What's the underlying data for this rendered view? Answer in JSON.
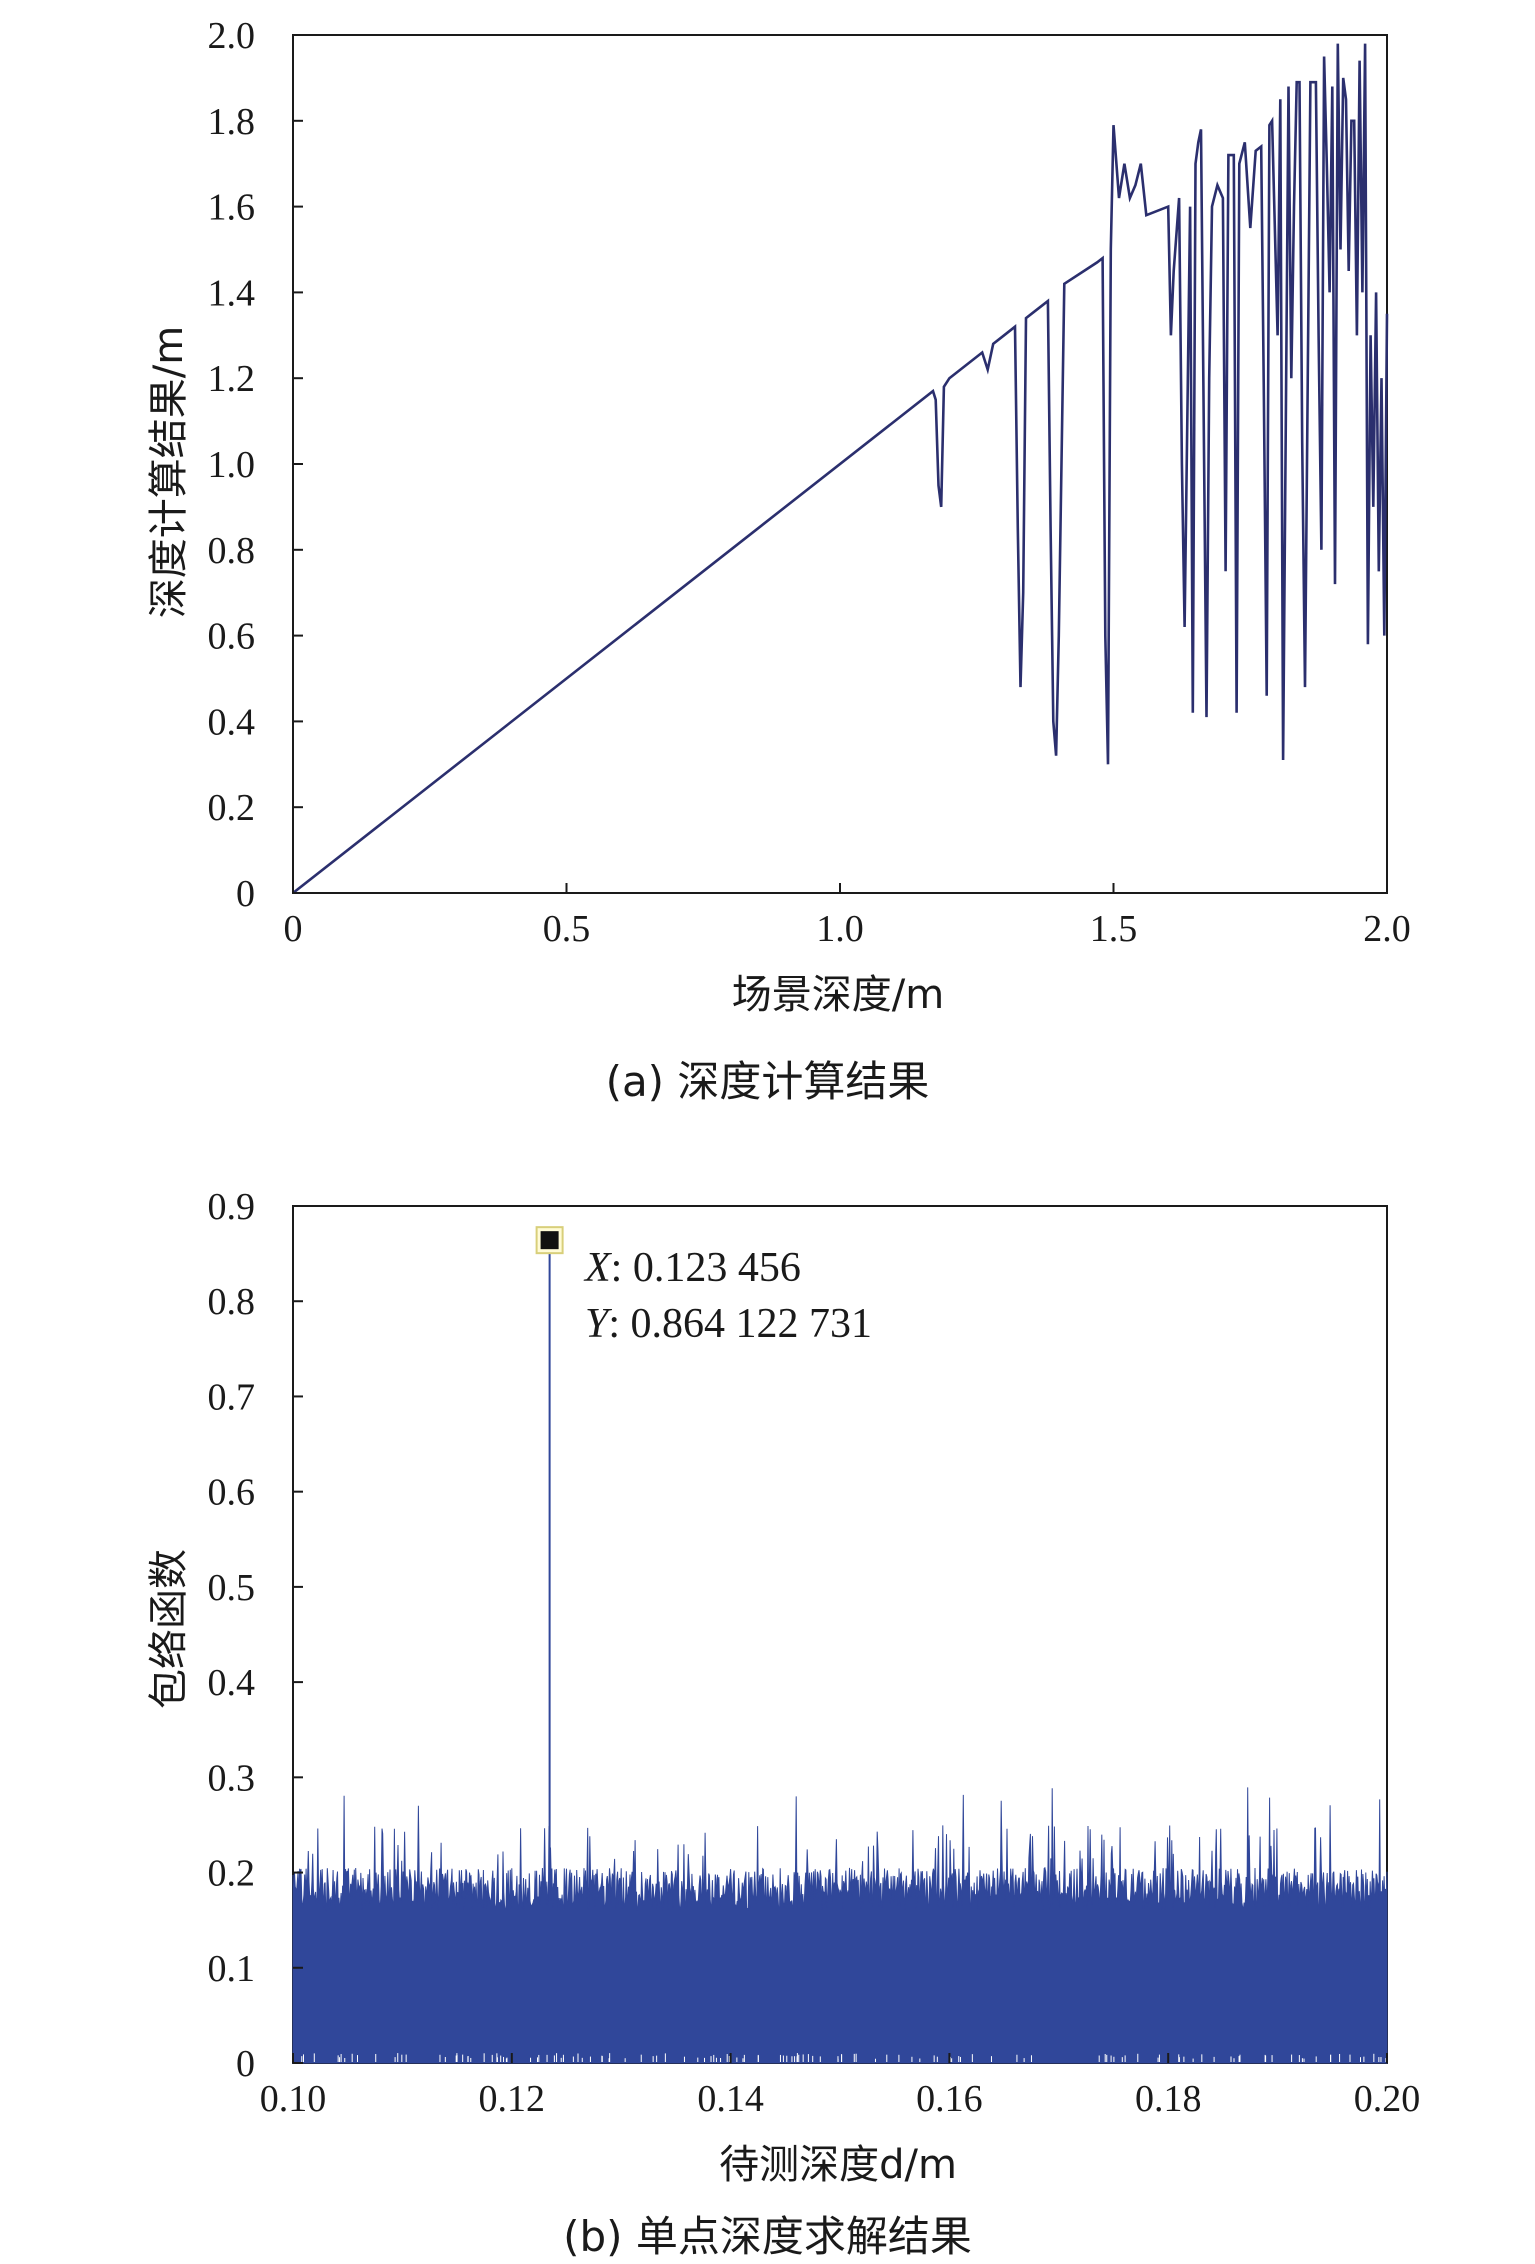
{
  "chart_data": [
    {
      "type": "line",
      "xlabel": "场景深度/m",
      "ylabel": "深度计算结果/m",
      "caption": "(a) 深度计算结果",
      "xlim": [
        0,
        2.0
      ],
      "ylim": [
        0,
        2.0
      ],
      "x_ticks": [
        "0",
        "0.5",
        "1.0",
        "1.5",
        "2.0"
      ],
      "x_tick_values": [
        0,
        0.5,
        1.0,
        1.5,
        2.0
      ],
      "y_ticks": [
        "0",
        "0.2",
        "0.4",
        "0.6",
        "0.8",
        "1.0",
        "1.2",
        "1.4",
        "1.6",
        "1.8",
        "2.0"
      ],
      "y_tick_values": [
        0,
        0.2,
        0.4,
        0.6,
        0.8,
        1.0,
        1.2,
        1.4,
        1.6,
        1.8,
        2.0
      ],
      "grid": false,
      "line_color": "#2b2f6e",
      "series": [
        {
          "x": [
            0,
            1.17,
            1.175,
            1.18,
            1.185,
            1.19,
            1.2,
            1.26,
            1.27,
            1.28,
            1.3,
            1.32,
            1.325,
            1.33,
            1.335,
            1.34,
            1.35,
            1.37,
            1.38,
            1.385,
            1.39,
            1.395,
            1.4,
            1.41,
            1.47,
            1.48,
            1.485,
            1.49,
            1.495,
            1.5,
            1.51,
            1.52,
            1.53,
            1.54,
            1.55,
            1.56,
            1.6,
            1.605,
            1.61,
            1.62,
            1.625,
            1.63,
            1.64,
            1.645,
            1.65,
            1.655,
            1.66,
            1.67,
            1.675,
            1.68,
            1.69,
            1.7,
            1.705,
            1.71,
            1.72,
            1.725,
            1.73,
            1.74,
            1.75,
            1.76,
            1.77,
            1.775,
            1.78,
            1.785,
            1.79,
            1.8,
            1.805,
            1.81,
            1.82,
            1.825,
            1.83,
            1.835,
            1.84,
            1.845,
            1.85,
            1.86,
            1.87,
            1.875,
            1.88,
            1.885,
            1.89,
            1.895,
            1.9,
            1.905,
            1.91,
            1.915,
            1.92,
            1.925,
            1.93,
            1.935,
            1.94,
            1.945,
            1.95,
            1.955,
            1.96,
            1.965,
            1.97,
            1.975,
            1.98,
            1.985,
            1.99,
            1.995,
            2.0
          ],
          "y": [
            0,
            1.17,
            1.15,
            0.95,
            0.9,
            1.18,
            1.2,
            1.26,
            1.22,
            1.28,
            1.3,
            1.32,
            0.85,
            0.48,
            0.7,
            1.34,
            1.35,
            1.37,
            1.38,
            0.85,
            0.4,
            0.32,
            0.6,
            1.42,
            1.47,
            1.48,
            0.6,
            0.3,
            1.5,
            1.79,
            1.62,
            1.7,
            1.62,
            1.65,
            1.7,
            1.58,
            1.6,
            1.3,
            1.45,
            1.62,
            1.0,
            0.62,
            1.6,
            0.42,
            1.7,
            1.75,
            1.78,
            0.41,
            1.2,
            1.6,
            1.65,
            1.62,
            0.75,
            1.72,
            1.72,
            0.42,
            1.7,
            1.75,
            1.55,
            1.73,
            1.74,
            1.15,
            0.46,
            1.79,
            1.8,
            1.3,
            1.85,
            0.31,
            1.88,
            1.2,
            1.6,
            1.89,
            1.89,
            1.05,
            0.48,
            1.89,
            1.89,
            1.3,
            0.8,
            1.95,
            1.7,
            1.4,
            1.88,
            0.72,
            1.98,
            1.5,
            1.9,
            1.85,
            1.45,
            1.8,
            1.8,
            1.3,
            1.94,
            1.4,
            1.98,
            0.58,
            1.3,
            0.9,
            1.4,
            0.75,
            1.2,
            0.6,
            1.35
          ]
        }
      ]
    },
    {
      "type": "line",
      "xlabel": "待测深度d/m",
      "ylabel": "包络函数",
      "caption": "(b) 单点深度求解结果",
      "xlim": [
        0.1,
        0.2
      ],
      "ylim": [
        0,
        0.9
      ],
      "x_ticks": [
        "0.10",
        "0.12",
        "0.14",
        "0.16",
        "0.18",
        "0.20"
      ],
      "x_tick_values": [
        0.1,
        0.12,
        0.14,
        0.16,
        0.18,
        0.2
      ],
      "y_ticks": [
        "0",
        "0.1",
        "0.2",
        "0.3",
        "0.4",
        "0.5",
        "0.6",
        "0.7",
        "0.8",
        "0.9"
      ],
      "y_tick_values": [
        0,
        0.1,
        0.2,
        0.3,
        0.4,
        0.5,
        0.6,
        0.7,
        0.8,
        0.9
      ],
      "grid": false,
      "fill_color": "#30479a",
      "noise_band": {
        "min": 0.0,
        "typical_max": 0.21,
        "peak_max": 0.29
      },
      "peak": {
        "x": 0.123456,
        "y": 0.864122731
      },
      "annotation": {
        "x_key": "X",
        "x_text": ": 0.123 456",
        "y_key": "Y",
        "y_text": ": 0.864 122 731"
      }
    }
  ]
}
